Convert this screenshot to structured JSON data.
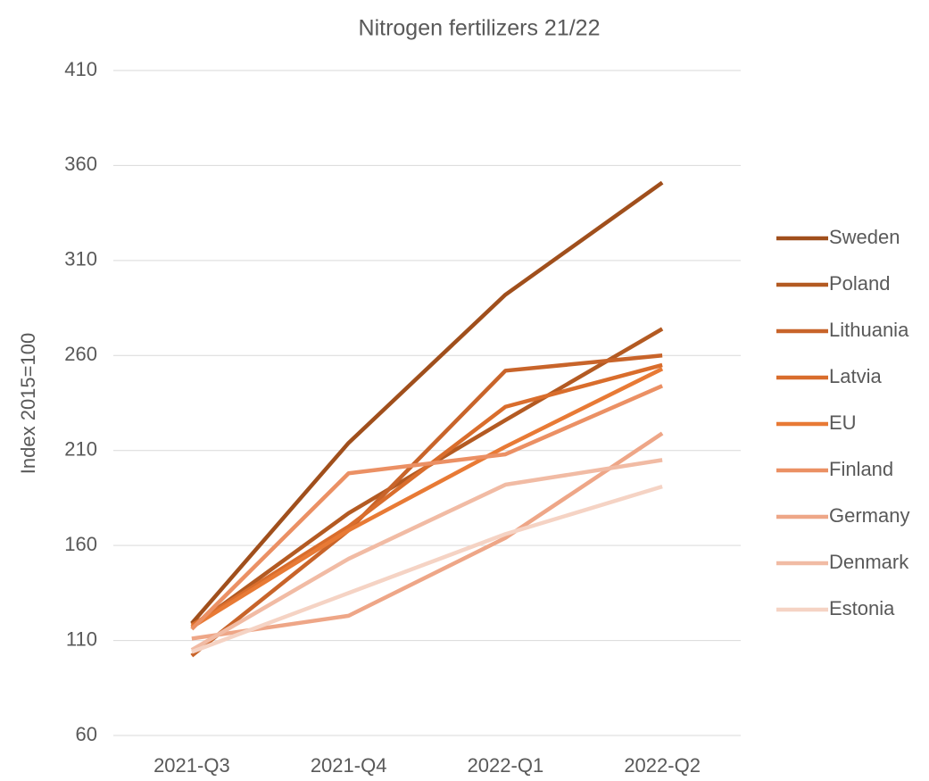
{
  "chart_data": {
    "type": "line",
    "title": "Nitrogen fertilizers 21/22",
    "y_label": "Index 2015=100",
    "categories": [
      "2021-Q3",
      "2021-Q4",
      "2022-Q1",
      "2022-Q2"
    ],
    "series": [
      {
        "name": "Sweden",
        "color": "#a04f1c",
        "values": [
          119,
          214,
          292,
          351
        ]
      },
      {
        "name": "Poland",
        "color": "#b35a22",
        "values": [
          117,
          177,
          226,
          274
        ]
      },
      {
        "name": "Lithuania",
        "color": "#c8642a",
        "values": [
          102,
          168,
          252,
          260
        ]
      },
      {
        "name": "Latvia",
        "color": "#d96d2c",
        "values": [
          118,
          170,
          233,
          255
        ]
      },
      {
        "name": "EU",
        "color": "#e87a35",
        "values": [
          117,
          168,
          212,
          253
        ]
      },
      {
        "name": "Finland",
        "color": "#eb9064",
        "values": [
          116,
          198,
          208,
          244
        ]
      },
      {
        "name": "Germany",
        "color": "#eea687",
        "values": [
          111,
          123,
          164,
          219
        ]
      },
      {
        "name": "Denmark",
        "color": "#f1bba4",
        "values": [
          105,
          153,
          192,
          205
        ]
      },
      {
        "name": "Estonia",
        "color": "#f5d3c4",
        "values": [
          104,
          135,
          166,
          191
        ]
      }
    ],
    "ylim": [
      60,
      410
    ],
    "yticks": [
      60,
      110,
      160,
      210,
      260,
      310,
      360,
      410
    ],
    "grid": true,
    "legend": "right"
  }
}
